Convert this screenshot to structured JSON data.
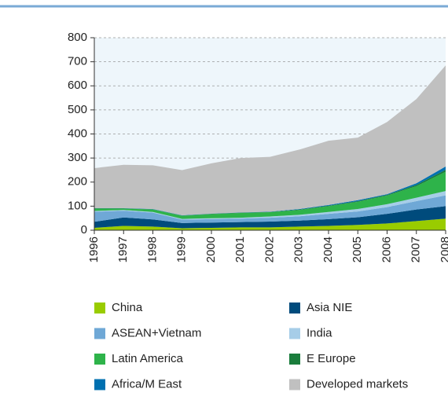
{
  "chart_data": {
    "type": "stacked_area",
    "categories": [
      "1996",
      "1997",
      "1998",
      "1999",
      "2000",
      "2001",
      "2002",
      "2003",
      "2004",
      "2005",
      "2006",
      "2007",
      "2008"
    ],
    "series": [
      {
        "name": "China",
        "color": "#99cc00",
        "values": [
          10,
          18,
          15,
          8,
          10,
          12,
          12,
          15,
          18,
          22,
          28,
          38,
          48
        ]
      },
      {
        "name": "Asia NIE",
        "color": "#004b7c",
        "values": [
          25,
          35,
          30,
          22,
          22,
          22,
          24,
          25,
          28,
          32,
          40,
          48,
          52
        ]
      },
      {
        "name": "ASEAN+Vietnam",
        "color": "#6fa8d6",
        "values": [
          42,
          28,
          28,
          14,
          14,
          14,
          16,
          18,
          22,
          24,
          28,
          35,
          45
        ]
      },
      {
        "name": "India",
        "color": "#a6cde8",
        "values": [
          3,
          3,
          3,
          3,
          4,
          4,
          5,
          6,
          8,
          10,
          12,
          14,
          18
        ]
      },
      {
        "name": "Latin America",
        "color": "#2eb34a",
        "values": [
          10,
          6,
          10,
          13,
          17,
          20,
          18,
          20,
          24,
          30,
          36,
          48,
          80
        ]
      },
      {
        "name": "E Europe",
        "color": "#1a7d3c",
        "values": [
          1,
          1,
          1,
          1,
          1,
          1,
          1,
          2,
          2,
          3,
          3,
          5,
          8
        ]
      },
      {
        "name": "Africa/M East",
        "color": "#0070b0",
        "values": [
          1,
          1,
          1,
          1,
          1,
          1,
          1,
          2,
          3,
          4,
          3,
          7,
          14
        ]
      },
      {
        "name": "Developed markets",
        "color": "#c0c0c0",
        "values": [
          166,
          180,
          182,
          188,
          209,
          226,
          228,
          247,
          267,
          260,
          300,
          350,
          420
        ]
      }
    ],
    "ylim": [
      0,
      800
    ],
    "yticks": [
      0,
      100,
      200,
      300,
      400,
      500,
      600,
      700,
      800
    ],
    "grid": true
  }
}
